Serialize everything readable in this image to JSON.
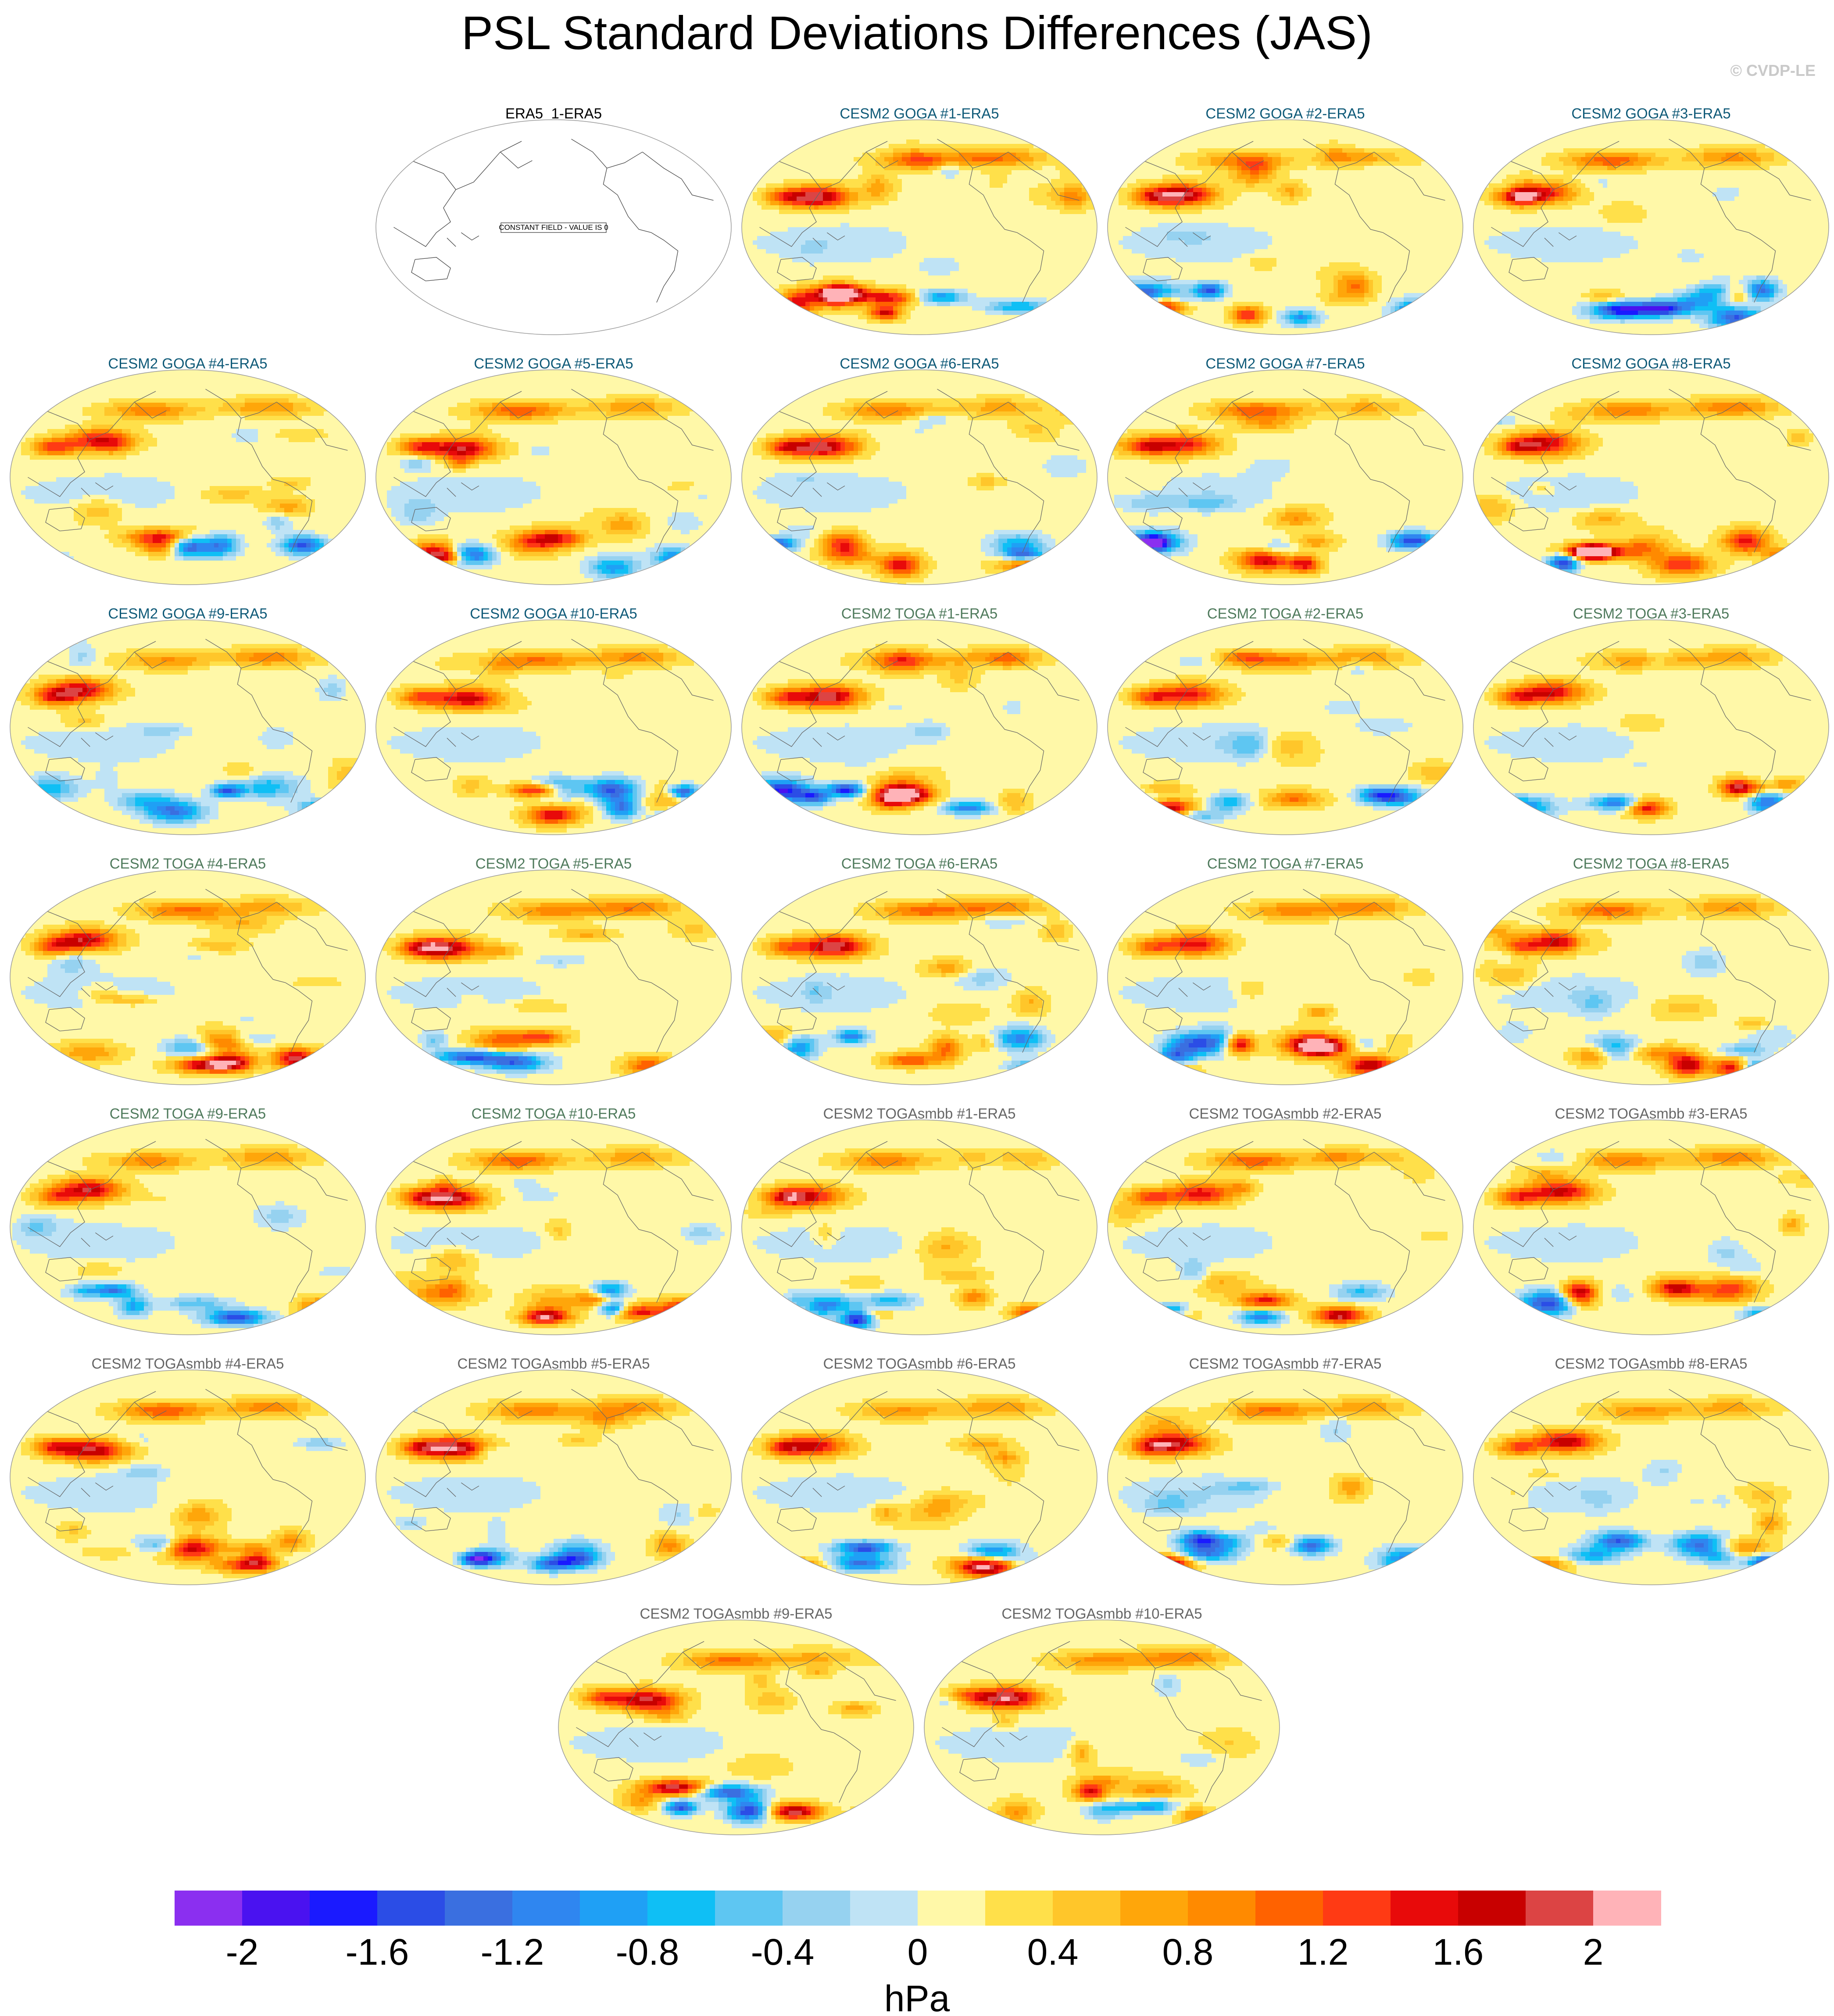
{
  "title": "PSL Standard Deviations Differences (JAS)",
  "copyright": "© CVDP-LE",
  "panels": [
    {
      "title": "ERA5_1-ERA5",
      "group": "obs",
      "constant_label": "CONSTANT FIELD - VALUE IS 0",
      "seed": 0
    },
    {
      "title": "CESM2 GOGA #1-ERA5",
      "group": "goga",
      "seed": 11
    },
    {
      "title": "CESM2 GOGA #2-ERA5",
      "group": "goga",
      "seed": 12
    },
    {
      "title": "CESM2 GOGA #3-ERA5",
      "group": "goga",
      "seed": 13
    },
    {
      "title": "CESM2 GOGA #4-ERA5",
      "group": "goga",
      "seed": 14
    },
    {
      "title": "CESM2 GOGA #5-ERA5",
      "group": "goga",
      "seed": 15
    },
    {
      "title": "CESM2 GOGA #6-ERA5",
      "group": "goga",
      "seed": 16
    },
    {
      "title": "CESM2 GOGA #7-ERA5",
      "group": "goga",
      "seed": 17
    },
    {
      "title": "CESM2 GOGA #8-ERA5",
      "group": "goga",
      "seed": 18
    },
    {
      "title": "CESM2 GOGA #9-ERA5",
      "group": "goga",
      "seed": 19
    },
    {
      "title": "CESM2 GOGA #10-ERA5",
      "group": "goga",
      "seed": 20
    },
    {
      "title": "CESM2 TOGA #1-ERA5",
      "group": "toga",
      "seed": 21
    },
    {
      "title": "CESM2 TOGA #2-ERA5",
      "group": "toga",
      "seed": 22
    },
    {
      "title": "CESM2 TOGA #3-ERA5",
      "group": "toga",
      "seed": 23
    },
    {
      "title": "CESM2 TOGA #4-ERA5",
      "group": "toga",
      "seed": 24
    },
    {
      "title": "CESM2 TOGA #5-ERA5",
      "group": "toga",
      "seed": 25
    },
    {
      "title": "CESM2 TOGA #6-ERA5",
      "group": "toga",
      "seed": 26
    },
    {
      "title": "CESM2 TOGA #7-ERA5",
      "group": "toga",
      "seed": 27
    },
    {
      "title": "CESM2 TOGA #8-ERA5",
      "group": "toga",
      "seed": 28
    },
    {
      "title": "CESM2 TOGA #9-ERA5",
      "group": "toga",
      "seed": 29
    },
    {
      "title": "CESM2 TOGA #10-ERA5",
      "group": "toga",
      "seed": 30
    },
    {
      "title": "CESM2 TOGAsmbb #1-ERA5",
      "group": "smbb",
      "seed": 31
    },
    {
      "title": "CESM2 TOGAsmbb #2-ERA5",
      "group": "smbb",
      "seed": 32
    },
    {
      "title": "CESM2 TOGAsmbb #3-ERA5",
      "group": "smbb",
      "seed": 33
    },
    {
      "title": "CESM2 TOGAsmbb #4-ERA5",
      "group": "smbb",
      "seed": 34
    },
    {
      "title": "CESM2 TOGAsmbb #5-ERA5",
      "group": "smbb",
      "seed": 35
    },
    {
      "title": "CESM2 TOGAsmbb #6-ERA5",
      "group": "smbb",
      "seed": 36
    },
    {
      "title": "CESM2 TOGAsmbb #7-ERA5",
      "group": "smbb",
      "seed": 37
    },
    {
      "title": "CESM2 TOGAsmbb #8-ERA5",
      "group": "smbb",
      "seed": 38
    },
    {
      "title": "CESM2 TOGAsmbb #9-ERA5",
      "group": "smbb",
      "seed": 39
    },
    {
      "title": "CESM2 TOGAsmbb #10-ERA5",
      "group": "smbb",
      "seed": 40
    }
  ],
  "colorbar": {
    "units": "hPa",
    "min": -2.2,
    "max": 2.2,
    "step": 0.2,
    "colors": [
      "#8b2ff0",
      "#4a12f0",
      "#1a1aff",
      "#2b4de6",
      "#3a6fe0",
      "#2f86f0",
      "#1fa0f5",
      "#0fbff5",
      "#5ec6f2",
      "#96d2f0",
      "#bfe3f5",
      "#fff8a8",
      "#ffe04a",
      "#ffc62a",
      "#ffa60a",
      "#ff8a00",
      "#ff6200",
      "#ff3a14",
      "#e80a0a",
      "#c80000",
      "#dc4444",
      "#ffb3b8"
    ],
    "tick_labels": [
      "-2",
      "-1.6",
      "-1.2",
      "-0.8",
      "-0.4",
      "0",
      "0.4",
      "0.8",
      "1.2",
      "1.6",
      "2"
    ],
    "tick_values": [
      -2,
      -1.6,
      -1.2,
      -0.8,
      -0.4,
      0,
      0.4,
      0.8,
      1.2,
      1.6,
      2
    ]
  }
}
